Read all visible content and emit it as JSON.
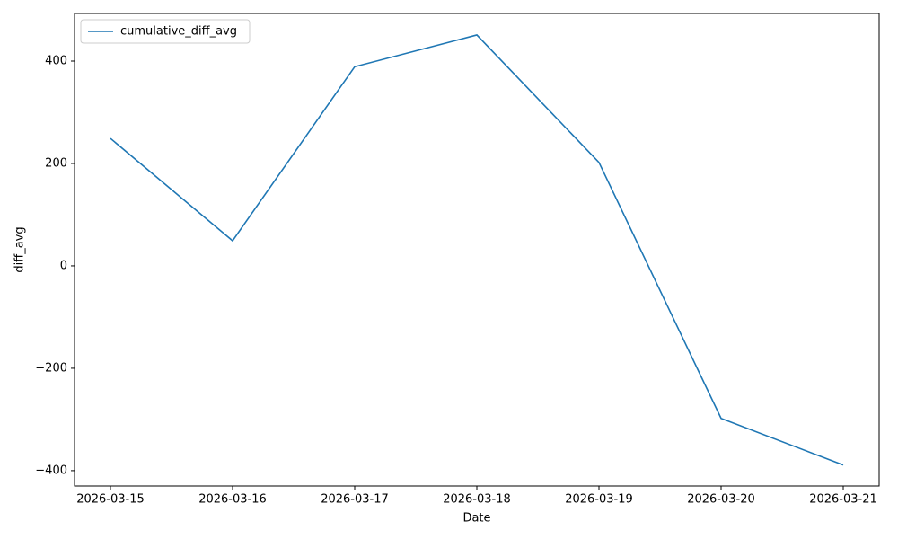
{
  "chart_data": {
    "type": "line",
    "xlabel": "Date",
    "ylabel": "diff_avg",
    "categories": [
      "2026-03-15",
      "2026-03-16",
      "2026-03-17",
      "2026-03-18",
      "2026-03-19",
      "2026-03-20",
      "2026-03-21"
    ],
    "series": [
      {
        "name": "cumulative_diff_avg",
        "color": "#1f77b4",
        "values": [
          249,
          49,
          389,
          451,
          202,
          -298,
          -389
        ]
      }
    ],
    "ylim": [
      -430,
      493
    ],
    "yticks": [
      {
        "value": -400,
        "label": "−400"
      },
      {
        "value": -200,
        "label": "−200"
      },
      0,
      200,
      400
    ],
    "legend": "upper-left",
    "grid": false
  }
}
